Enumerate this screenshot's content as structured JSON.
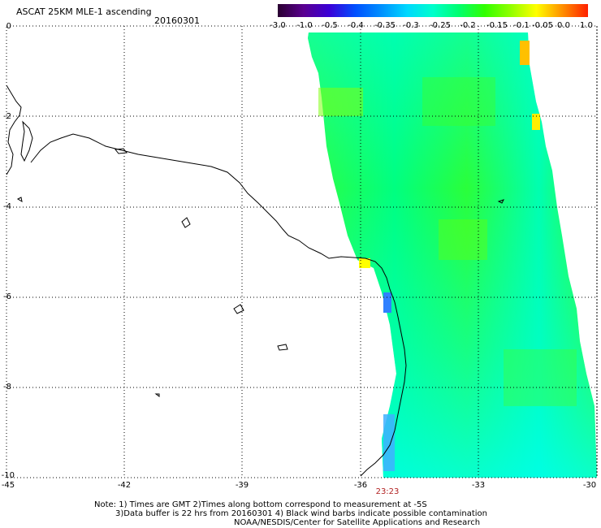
{
  "header": {
    "title": "ASCAT 25KM MLE-1 ascending",
    "date": "20160301"
  },
  "colorbar": {
    "labels": [
      "-3.0",
      "-1.0",
      "-0.5",
      "-0.4",
      "-0.35",
      "-0.3",
      "-0.25",
      "-0.2",
      "-0.15",
      "-0.1",
      "-0.05",
      "0.0",
      "1.0"
    ],
    "colors": [
      "#2a0030",
      "#5a0090",
      "#3a00d8",
      "#0050ff",
      "#0090ff",
      "#00d8ff",
      "#00ffcc",
      "#00ff70",
      "#30ff00",
      "#90ff00",
      "#ffff00",
      "#ff9000",
      "#ff2000"
    ]
  },
  "axes": {
    "lat_ticks": [
      "0",
      "-2",
      "-4",
      "-6",
      "-8",
      "-10"
    ],
    "lon_ticks": [
      "-45",
      "-42",
      "-39",
      "-36",
      "-33",
      "-30"
    ]
  },
  "overlay": {
    "time_label": "23:23",
    "time_color": "#b22222"
  },
  "footer": {
    "note_line1": "Note: 1) Times are GMT 2)Times along bottom correspond to measurement at -5S",
    "note_line2": "3)Data buffer is 22 hrs from 20160301 4) Black wind barbs indicate possible contamination",
    "note_line3": "NOAA/NESDIS/Center for Satellite Applications and Research"
  }
}
